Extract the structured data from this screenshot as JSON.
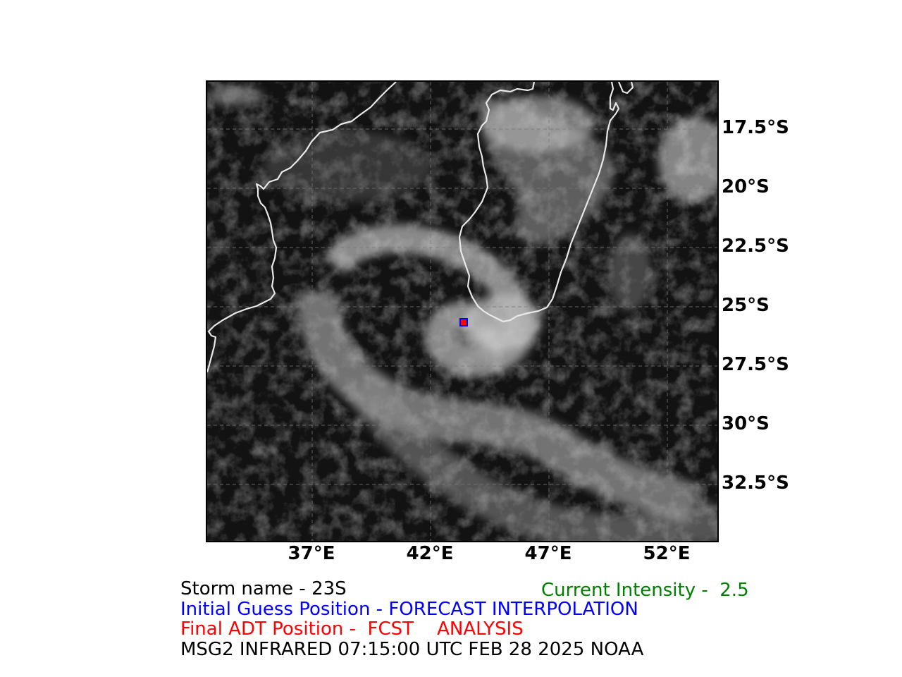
{
  "map": {
    "latitude_labels": [
      "17.5°S",
      "20°S",
      "22.5°S",
      "25°S",
      "27.5°S",
      "30°S",
      "32.5°S"
    ],
    "longitude_labels": [
      "37°E",
      "42°E",
      "47°E",
      "52°E"
    ],
    "storm_center": {
      "lon": 42.6,
      "lat": -25.7
    },
    "colors": {
      "coastline": "#e8e8e8",
      "gridline": "#777777",
      "marker_fill": "#ff0000",
      "marker_edge": "#0000ff"
    }
  },
  "info": {
    "storm_name": "Storm name - 23S",
    "current_intensity": "Current Intensity -  2.5",
    "initial_guess": "Initial Guess Position - FORECAST INTERPOLATION",
    "final_position": "Final ADT Position -  FCST    ANALYSIS",
    "satellite": "MSG2 INFRARED 07:15:00 UTC FEB 28 2025 NOAA",
    "colors": {
      "storm_name": "#000000",
      "current_intensity": "#008000",
      "initial_guess": "#0000ff",
      "final_position": "#ff0000",
      "satellite": "#000000"
    }
  }
}
